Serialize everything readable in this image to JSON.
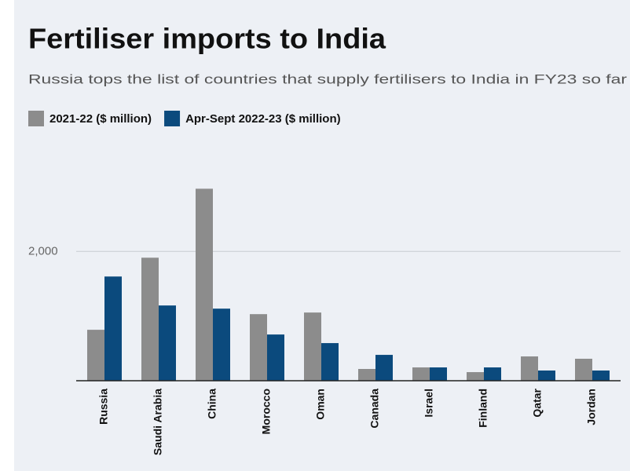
{
  "chart_data": {
    "type": "bar",
    "title": "Fertiliser imports to India",
    "subtitle": "Russia tops the list of countries that supply fertilisers to India in FY23 so far",
    "categories": [
      "Russia",
      "Saudi Arabia",
      "China",
      "Morocco",
      "Oman",
      "Canada",
      "Israel",
      "Finland",
      "Qatar",
      "Jordan"
    ],
    "series": [
      {
        "name": "2021-22 ($ million)",
        "color": "#8c8c8c",
        "values": [
          788,
          1903,
          2970,
          1030,
          1055,
          182,
          206,
          133,
          376,
          340
        ]
      },
      {
        "name": "Apr-Sept 2022-23 ($ million)",
        "color": "#0b4a7d",
        "values": [
          1612,
          1164,
          1115,
          715,
          582,
          400,
          206,
          206,
          158,
          158
        ]
      }
    ],
    "ylim": [
      0,
      3400
    ],
    "yticks": [
      {
        "value": 2000,
        "label": "2,000"
      }
    ],
    "grid": true,
    "legend": "top"
  }
}
